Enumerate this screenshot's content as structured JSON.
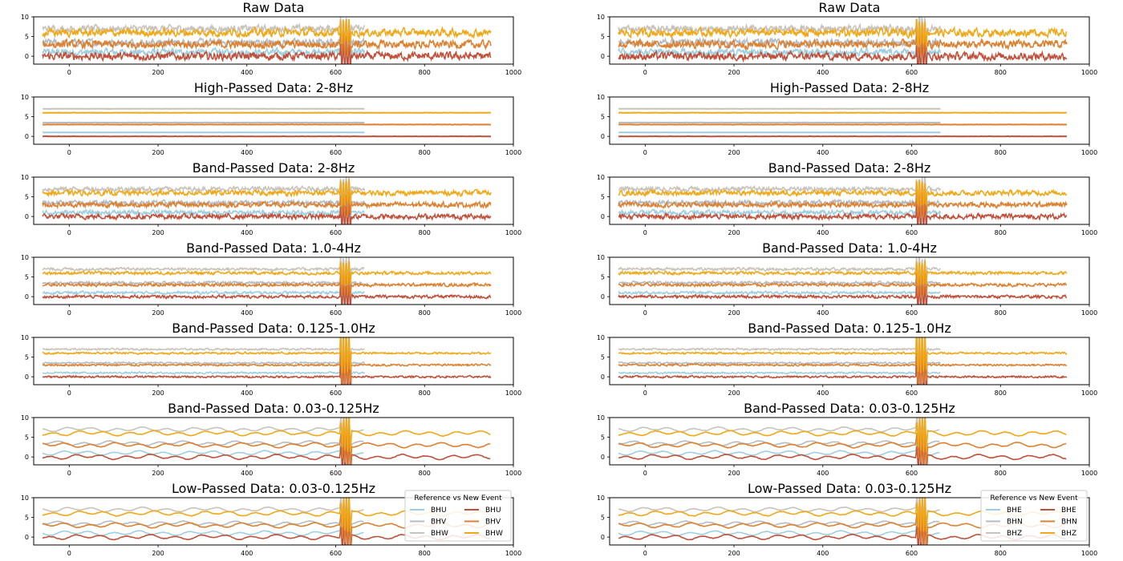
{
  "chart_data": {
    "type": "line",
    "xlim": [
      -80,
      1000
    ],
    "ylim": [
      -2,
      10
    ],
    "xticks": [
      "0",
      "200",
      "400",
      "600",
      "800",
      "1000"
    ],
    "yticks": [
      "0",
      "5",
      "10"
    ],
    "colors": {
      "reference": [
        "#9ecfe0",
        "#b3bcc2",
        "#c8c3bb"
      ],
      "new_event": [
        "#c0503a",
        "#dd8030",
        "#f0a818"
      ]
    },
    "column_titles": [
      [
        "Raw Data",
        "High-Passed Data: 2-8Hz",
        "Band-Passed Data: 2-8Hz",
        "Band-Passed Data: 1.0-4Hz",
        "Band-Passed Data: 0.125-1.0Hz",
        "Band-Passed Data: 0.03-0.125Hz",
        "Low-Passed Data: 0.03-0.125Hz"
      ],
      [
        "Raw Data",
        "High-Passed Data: 2-8Hz",
        "Band-Passed Data: 2-8Hz",
        "Band-Passed Data: 1.0-4Hz",
        "Band-Passed Data: 0.125-1.0Hz",
        "Band-Passed Data: 0.03-0.125Hz",
        "Low-Passed Data: 0.03-0.125Hz"
      ]
    ],
    "legends": [
      {
        "title": "Reference  vs   New Event",
        "reference": [
          "BHU",
          "BHV",
          "BHW"
        ],
        "new_event": [
          "BHU",
          "BHV",
          "BHW"
        ]
      },
      {
        "title": "Reference  vs   New Event",
        "reference": [
          "BHE",
          "BHN",
          "BHZ"
        ],
        "new_event": [
          "BHE",
          "BHN",
          "BHZ"
        ]
      }
    ],
    "traces": {
      "reference": {
        "offsets": [
          1,
          3.5,
          7
        ],
        "x_range": [
          -60,
          665
        ]
      },
      "new_event": {
        "offsets": [
          0,
          3,
          6
        ],
        "x_range": [
          -60,
          950
        ]
      },
      "amplitude_by_panel": [
        1.4,
        0.05,
        0.9,
        0.55,
        0.35,
        0.6,
        0.6
      ],
      "event_x": 622
    }
  }
}
